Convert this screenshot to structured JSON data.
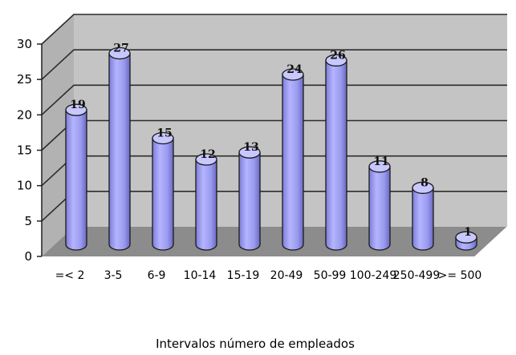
{
  "chart_data": {
    "type": "bar",
    "title": "",
    "xlabel": "Intervalos número de empleados",
    "ylabel": "",
    "categories": [
      "=< 2",
      "3-5",
      "6-9",
      "10-14",
      "15-19",
      "20-49",
      "50-99",
      "100-249",
      "250-499",
      ">= 500"
    ],
    "values": [
      19,
      27,
      15,
      12,
      13,
      24,
      26,
      11,
      8,
      1
    ],
    "ylim": [
      0,
      30
    ],
    "yticks": [
      "0",
      "5",
      "10",
      "15",
      "20",
      "25",
      "30"
    ],
    "grid": true,
    "style": "3d-cylinder",
    "colors": {
      "bar": "#9f9ff2",
      "bar_top": "#c8c8ff",
      "back_wall": "#c4c4c4",
      "side_wall": "#b2b2b2",
      "floor": "#8c8c8c",
      "grid": "#2c2c2c"
    }
  }
}
